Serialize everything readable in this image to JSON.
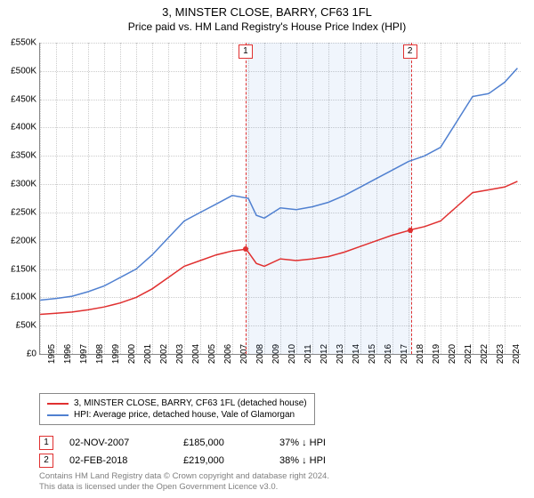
{
  "title": "3, MINSTER CLOSE, BARRY, CF63 1FL",
  "subtitle": "Price paid vs. HM Land Registry's House Price Index (HPI)",
  "chart": {
    "type": "line",
    "background_color": "#ffffff",
    "grid_color": "#cccccc",
    "axis_color": "#888888",
    "label_fontsize": 10,
    "ylim": [
      0,
      550000
    ],
    "ytick_step": 50000,
    "yticks": [
      "£0",
      "£50K",
      "£100K",
      "£150K",
      "£200K",
      "£250K",
      "£300K",
      "£350K",
      "£400K",
      "£450K",
      "£500K",
      "£550K"
    ],
    "xyears": [
      1995,
      1996,
      1997,
      1998,
      1999,
      2000,
      2001,
      2002,
      2003,
      2004,
      2005,
      2006,
      2007,
      2008,
      2009,
      2010,
      2011,
      2012,
      2013,
      2014,
      2015,
      2016,
      2017,
      2018,
      2019,
      2020,
      2021,
      2022,
      2023,
      2024
    ],
    "shade_band": {
      "start_year": 2007.83,
      "end_year": 2018.09
    },
    "markers": [
      {
        "label": "1",
        "year": 2007.83,
        "price": 185000
      },
      {
        "label": "2",
        "year": 2018.09,
        "price": 219000
      }
    ],
    "series": [
      {
        "name": "property",
        "color": "#e03030",
        "width": 1.5,
        "data": [
          [
            1995,
            70000
          ],
          [
            1996,
            72000
          ],
          [
            1997,
            74000
          ],
          [
            1998,
            78000
          ],
          [
            1999,
            83000
          ],
          [
            2000,
            90000
          ],
          [
            2001,
            100000
          ],
          [
            2002,
            115000
          ],
          [
            2003,
            135000
          ],
          [
            2004,
            155000
          ],
          [
            2005,
            165000
          ],
          [
            2006,
            175000
          ],
          [
            2007,
            182000
          ],
          [
            2007.83,
            185000
          ],
          [
            2008,
            180000
          ],
          [
            2008.5,
            160000
          ],
          [
            2009,
            155000
          ],
          [
            2010,
            168000
          ],
          [
            2011,
            165000
          ],
          [
            2012,
            168000
          ],
          [
            2013,
            172000
          ],
          [
            2014,
            180000
          ],
          [
            2015,
            190000
          ],
          [
            2016,
            200000
          ],
          [
            2017,
            210000
          ],
          [
            2018,
            218000
          ],
          [
            2018.09,
            219000
          ],
          [
            2019,
            225000
          ],
          [
            2020,
            235000
          ],
          [
            2021,
            260000
          ],
          [
            2022,
            285000
          ],
          [
            2023,
            290000
          ],
          [
            2024,
            295000
          ],
          [
            2024.8,
            305000
          ]
        ]
      },
      {
        "name": "hpi",
        "color": "#5080d0",
        "width": 1.5,
        "data": [
          [
            1995,
            95000
          ],
          [
            1996,
            98000
          ],
          [
            1997,
            102000
          ],
          [
            1998,
            110000
          ],
          [
            1999,
            120000
          ],
          [
            2000,
            135000
          ],
          [
            2001,
            150000
          ],
          [
            2002,
            175000
          ],
          [
            2003,
            205000
          ],
          [
            2004,
            235000
          ],
          [
            2005,
            250000
          ],
          [
            2006,
            265000
          ],
          [
            2007,
            280000
          ],
          [
            2008,
            275000
          ],
          [
            2008.5,
            245000
          ],
          [
            2009,
            240000
          ],
          [
            2010,
            258000
          ],
          [
            2011,
            255000
          ],
          [
            2012,
            260000
          ],
          [
            2013,
            268000
          ],
          [
            2014,
            280000
          ],
          [
            2015,
            295000
          ],
          [
            2016,
            310000
          ],
          [
            2017,
            325000
          ],
          [
            2018,
            340000
          ],
          [
            2019,
            350000
          ],
          [
            2020,
            365000
          ],
          [
            2021,
            410000
          ],
          [
            2022,
            455000
          ],
          [
            2023,
            460000
          ],
          [
            2024,
            480000
          ],
          [
            2024.8,
            505000
          ]
        ]
      }
    ]
  },
  "legend": {
    "items": [
      {
        "color": "#e03030",
        "label": "3, MINSTER CLOSE, BARRY, CF63 1FL (detached house)"
      },
      {
        "color": "#5080d0",
        "label": "HPI: Average price, detached house, Vale of Glamorgan"
      }
    ]
  },
  "transactions": [
    {
      "marker": "1",
      "date": "02-NOV-2007",
      "price": "£185,000",
      "delta": "37% ↓ HPI"
    },
    {
      "marker": "2",
      "date": "02-FEB-2018",
      "price": "£219,000",
      "delta": "38% ↓ HPI"
    }
  ],
  "footer": {
    "line1": "Contains HM Land Registry data © Crown copyright and database right 2024.",
    "line2": "This data is licensed under the Open Government Licence v3.0."
  }
}
